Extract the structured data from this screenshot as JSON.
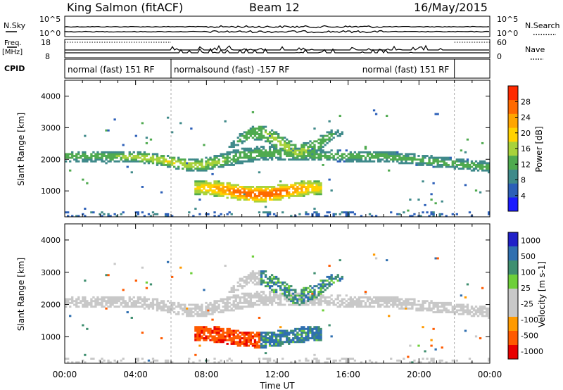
{
  "header": {
    "station": "King Salmon (fitACF)",
    "beam": "Beam 12",
    "date": "16/May/2015"
  },
  "status_panels": {
    "nsky_label": "N.Sky",
    "nsearch_label": "N.Search",
    "freq_label_line1": "Freq.",
    "freq_label_line2": "[MHz]",
    "nave_label": "Nave",
    "cpid_label": "CPID",
    "noise_ticks_left": [
      "10^5",
      "10^0"
    ],
    "noise_ticks_right": [
      "10^5",
      "10^0"
    ],
    "freq_ticks": [
      "18",
      "8"
    ],
    "nave_ticks": [
      "60",
      "0"
    ],
    "cpid_segments": [
      {
        "label": "normal (fast) 151 RF",
        "start_hour": 0,
        "end_hour": 6
      },
      {
        "label": "normalsound (fast) -157 RF",
        "start_hour": 6,
        "end_hour": 22
      },
      {
        "label": "normal (fast) 151 RF",
        "start_hour": 22,
        "end_hour": 24
      }
    ]
  },
  "colors": {
    "power": [
      "#1a1aff",
      "#2c5fb8",
      "#3f8a8a",
      "#4faa4f",
      "#a8d23a",
      "#ffd200",
      "#ffa500",
      "#ff6a00",
      "#ff2a00"
    ],
    "velocity": [
      "#2020c8",
      "#2f6fb0",
      "#3f8f70",
      "#6ecf3a",
      "#c8c8c8",
      "#c8c8c8",
      "#ff9a00",
      "#ff5a00",
      "#e80000"
    ]
  },
  "chart_data": [
    {
      "type": "heatmap",
      "quantity": "power",
      "xlabel": "",
      "ylabel": "Slant Range [km]",
      "x_range_hours": [
        0,
        24
      ],
      "ylim": [
        180,
        4500
      ],
      "y_ticks": [
        1000,
        2000,
        3000,
        4000
      ],
      "colorbar_label": "Power [dB]",
      "colorbar_range": [
        0,
        32
      ],
      "colorbar_ticks": [
        4,
        8,
        12,
        16,
        20,
        24,
        28
      ]
    },
    {
      "type": "heatmap",
      "quantity": "velocity",
      "xlabel": "Time UT",
      "ylabel": "Slant Range [km]",
      "x_range_hours": [
        0,
        24
      ],
      "ylim": [
        180,
        4500
      ],
      "y_ticks": [
        1000,
        2000,
        3000,
        4000
      ],
      "x_ticks": [
        "00:00",
        "04:00",
        "08:00",
        "12:00",
        "16:00",
        "20:00",
        "00:00"
      ],
      "colorbar_label": "Velocity [m s-1]",
      "colorbar_ticks": [
        "1000",
        "500",
        "100",
        "25",
        "-25",
        "-100",
        "-500",
        "-1000"
      ]
    }
  ]
}
